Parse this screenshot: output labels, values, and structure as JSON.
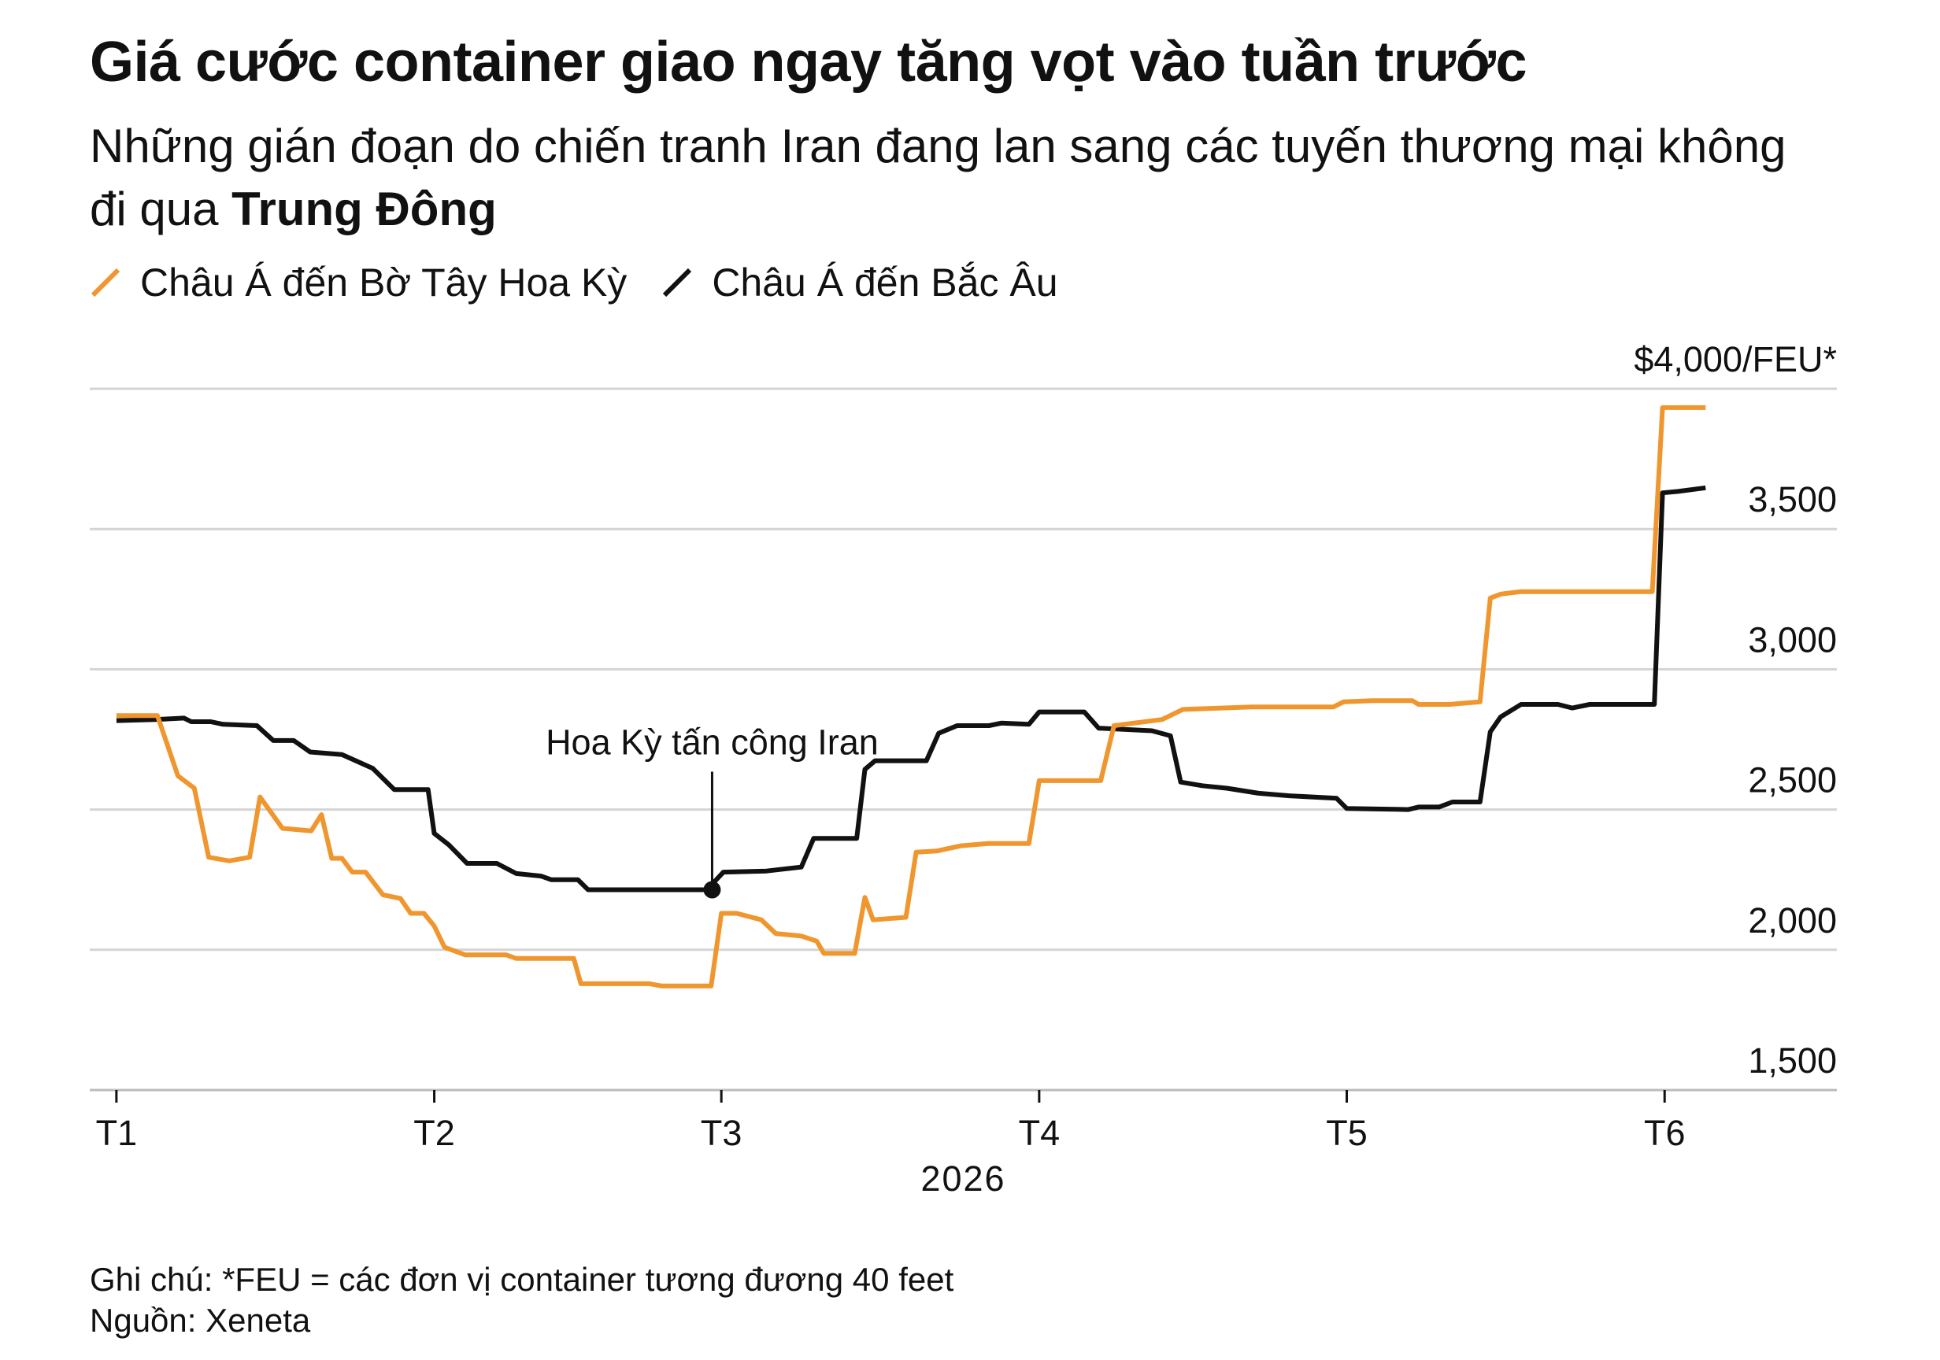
{
  "chart_data": {
    "type": "line",
    "title": "Giá cước container giao ngay tăng vọt vào tuần trước",
    "subtitle": [
      "Những gián đoạn do chiến tranh Iran đang lan sang các tuyến thương mại không đi qua ",
      "Trung Đông"
    ],
    "xlabel": "2026",
    "xlim": [
      -2.6,
      167.8
    ],
    "xticks": [
      {
        "value": 0,
        "label": "T1"
      },
      {
        "value": 31,
        "label": "T2"
      },
      {
        "value": 59,
        "label": "T3"
      },
      {
        "value": 90,
        "label": "T4"
      },
      {
        "value": 120,
        "label": "T5"
      },
      {
        "value": 151,
        "label": "T6"
      }
    ],
    "ylim": [
      1500,
      4000
    ],
    "yticks": [
      {
        "value": 4000,
        "label": "$4,000/FEU*"
      },
      {
        "value": 3500,
        "label": "3,500"
      },
      {
        "value": 3000,
        "label": "3,000"
      },
      {
        "value": 2500,
        "label": "2,500"
      },
      {
        "value": 2000,
        "label": "2,000"
      },
      {
        "value": 1500,
        "label": "1,500"
      }
    ],
    "grid": true,
    "series": [
      {
        "name": "Châu Á đến Bờ Tây Hoa Kỳ",
        "color": "#f0962e",
        "x": [
          0,
          4,
          6,
          7.6,
          9,
          11,
          13,
          14,
          16.2,
          19,
          20,
          21,
          22,
          23,
          24.3,
          26,
          27.7,
          28.7,
          30,
          31,
          32,
          34,
          38,
          39,
          44.6,
          45.3,
          52,
          53.2,
          58,
          59,
          60.5,
          62.9,
          64.3,
          66.8,
          68.3,
          69,
          72,
          73,
          73.8,
          77,
          78,
          80,
          82.4,
          85,
          89,
          90,
          96,
          97.3,
          102,
          104,
          110.7,
          118.7,
          119.7,
          122.5,
          126.4,
          127,
          130,
          133,
          134,
          135,
          137,
          149.8,
          150.8,
          155
        ],
        "values": [
          2835,
          2835,
          2620,
          2576,
          2330,
          2317,
          2330,
          2545,
          2433,
          2424,
          2482,
          2326,
          2326,
          2277,
          2277,
          2196,
          2183,
          2130,
          2130,
          2085,
          2009,
          1982,
          1982,
          1969,
          1969,
          1879,
          1879,
          1871,
          1871,
          2130,
          2130,
          2107,
          2058,
          2049,
          2031,
          1987,
          1987,
          2187,
          2107,
          2116,
          2348,
          2352,
          2371,
          2379,
          2379,
          2603,
          2603,
          2799,
          2821,
          2857,
          2866,
          2866,
          2884,
          2888,
          2888,
          2875,
          2875,
          2884,
          3254,
          3268,
          3277,
          3277,
          3933,
          3933
        ]
      },
      {
        "name": "Châu Á đến Bắc Âu",
        "color": "#111111",
        "x": [
          0,
          3.8,
          6.6,
          7.3,
          9.2,
          10.4,
          13.7,
          15.3,
          17.3,
          18.9,
          22,
          25,
          27.1,
          30.4,
          31,
          32.4,
          34.2,
          37.1,
          39,
          41.4,
          42.4,
          45,
          46,
          57.6,
          59.2,
          63.4,
          66.8,
          68,
          72.2,
          73,
          74,
          79,
          80.2,
          82,
          85.1,
          86.3,
          89,
          90,
          94.4,
          95.8,
          101,
          102.8,
          103.8,
          105.9,
          108.3,
          111.4,
          114.4,
          119,
          120,
          126,
          127,
          129,
          130.3,
          133,
          134,
          135,
          137,
          140.6,
          142,
          143.7,
          150,
          150.8,
          152.3,
          155
        ],
        "values": [
          2817,
          2821,
          2826,
          2813,
          2813,
          2804,
          2799,
          2746,
          2746,
          2705,
          2696,
          2647,
          2571,
          2571,
          2415,
          2375,
          2308,
          2308,
          2272,
          2263,
          2250,
          2250,
          2214,
          2214,
          2277,
          2281,
          2295,
          2397,
          2397,
          2643,
          2674,
          2674,
          2772,
          2799,
          2799,
          2808,
          2804,
          2848,
          2848,
          2790,
          2781,
          2763,
          2598,
          2585,
          2576,
          2558,
          2549,
          2540,
          2504,
          2500,
          2509,
          2509,
          2527,
          2527,
          2777,
          2830,
          2875,
          2875,
          2862,
          2875,
          2875,
          3629,
          3634,
          3647
        ]
      }
    ],
    "annotations": [
      {
        "text": "Hoa Kỳ tấn công Iran",
        "x": 58.1,
        "y": 2214
      }
    ],
    "notes": [
      "Ghi chú: *FEU = các đơn vị container tương đương 40 feet",
      "Nguồn: Xeneta"
    ]
  }
}
